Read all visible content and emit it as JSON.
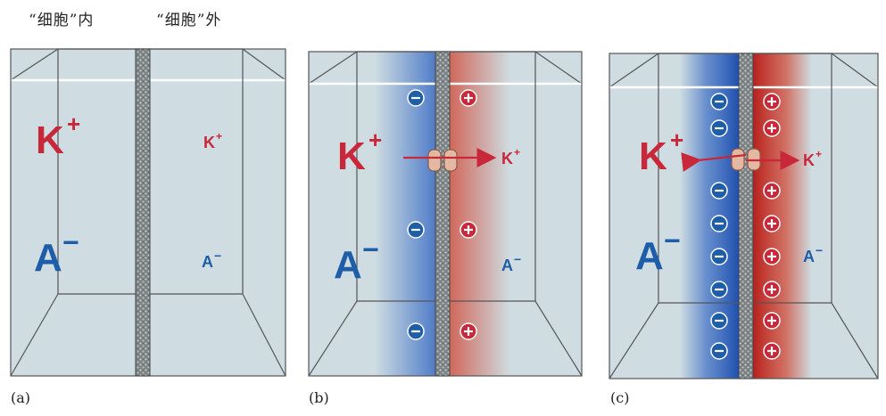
{
  "headers": {
    "inside": "“细胞”内",
    "outside": "“细胞”外"
  },
  "ions": {
    "k_big": "K",
    "k_small": "K",
    "plus_sup": "+",
    "a_big": "A",
    "a_small": "A",
    "minus_sup": "−"
  },
  "panels": [
    {
      "caption": "(a)"
    },
    {
      "caption": "(b)"
    },
    {
      "caption": "(c)"
    }
  ],
  "colors": {
    "box_fill": "#cfdde2",
    "k_color": "#c8283a",
    "a_color": "#1e5ea8",
    "neg_gradient": "#3a6cc4",
    "pos_gradient": "#d0402c"
  }
}
